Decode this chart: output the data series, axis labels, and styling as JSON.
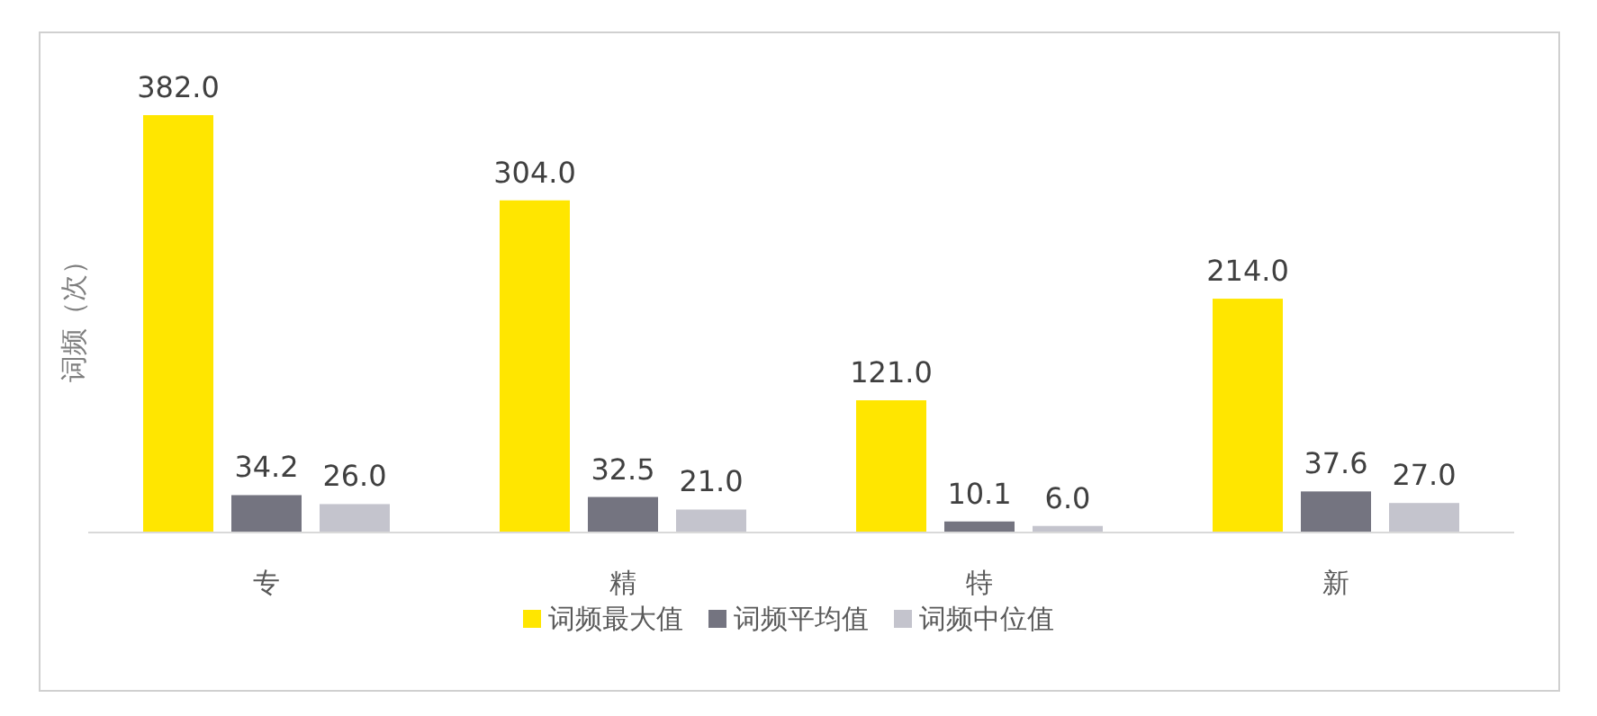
{
  "chart_data": {
    "type": "bar",
    "ylabel": "词频（次）",
    "categories": [
      "专",
      "精",
      "特",
      "新"
    ],
    "series": [
      {
        "name": "词频最大值",
        "color": "#ffe600",
        "values": [
          382.0,
          304.0,
          121.0,
          214.0
        ],
        "value_labels": [
          "382.0",
          "304.0",
          "121.0",
          "214.0"
        ]
      },
      {
        "name": "词频平均值",
        "color": "#747480",
        "values": [
          34.2,
          32.5,
          10.1,
          37.6
        ],
        "value_labels": [
          "34.2",
          "32.5",
          "10.1",
          "37.6"
        ]
      },
      {
        "name": "词频中位值",
        "color": "#c4c4cd",
        "values": [
          26.0,
          21.0,
          6.0,
          27.0
        ],
        "value_labels": [
          "26.0",
          "21.0",
          "6.0",
          "27.0"
        ]
      }
    ],
    "legend": "bottom"
  }
}
